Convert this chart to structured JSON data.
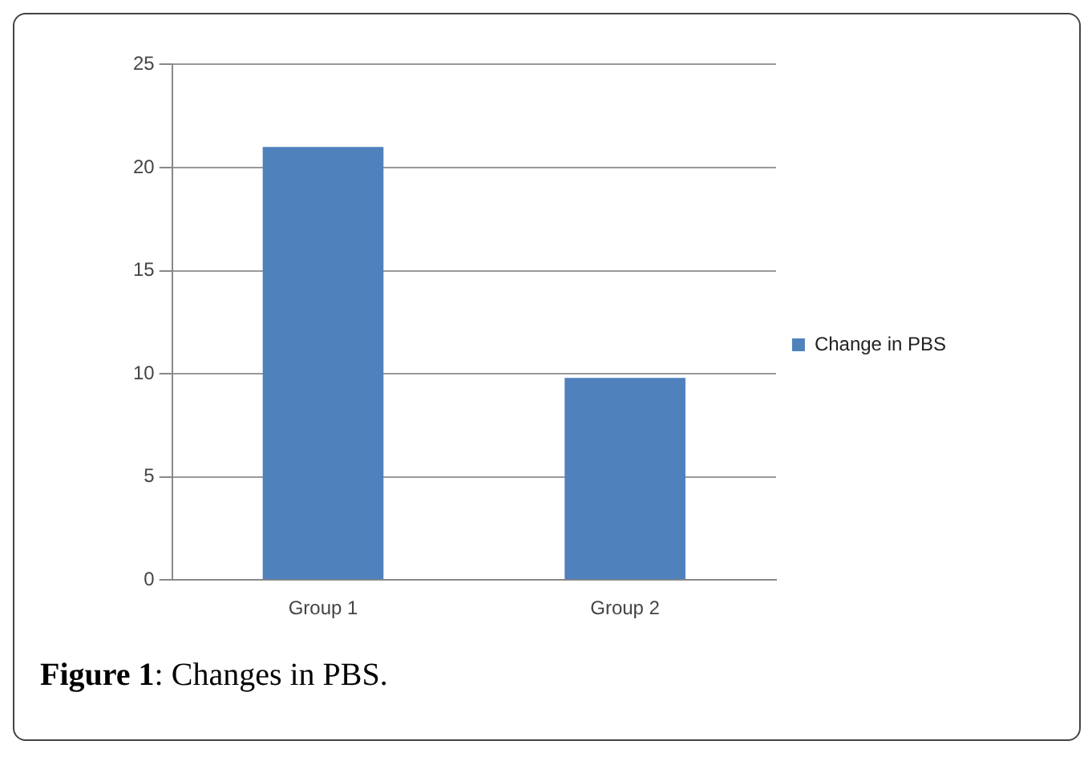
{
  "chart_data": {
    "type": "bar",
    "categories": [
      "Group 1",
      "Group 2"
    ],
    "series": [
      {
        "name": "Change in PBS",
        "color": "#4f81bd",
        "values": [
          21,
          9.8
        ]
      }
    ],
    "ylim": [
      0,
      25
    ],
    "yticks": [
      0,
      5,
      10,
      15,
      20,
      25
    ],
    "grid": "y",
    "legend": "right",
    "annotations": [
      "Figure 1: Changes in PBS."
    ]
  }
}
